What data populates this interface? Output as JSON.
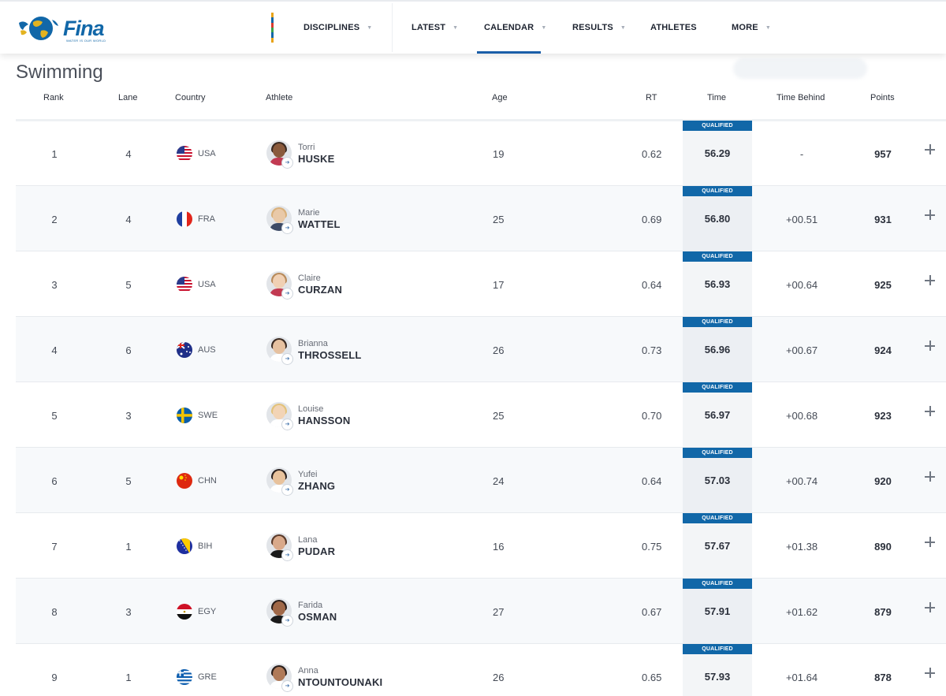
{
  "brand": {
    "name": "Fina",
    "tagline": "WATER IS OUR WORLD"
  },
  "nav": {
    "items": [
      {
        "label": "DISCIPLINES",
        "has_caret": true
      },
      {
        "label": "LATEST",
        "has_caret": true
      },
      {
        "label": "CALENDAR",
        "has_caret": true,
        "active": true
      },
      {
        "label": "RESULTS",
        "has_caret": true
      },
      {
        "label": "ATHLETES",
        "has_caret": false
      },
      {
        "label": "MORE",
        "has_caret": true
      }
    ],
    "accent": "#1a5ea8"
  },
  "page": {
    "title": "Swimming"
  },
  "table": {
    "columns": {
      "rank": "Rank",
      "lane": "Lane",
      "country": "Country",
      "athlete": "Athlete",
      "age": "Age",
      "rt": "RT",
      "time": "Time",
      "behind": "Time Behind",
      "points": "Points"
    },
    "qualified_label": "QUALIFIED",
    "rows": [
      {
        "rank": "1",
        "lane": "4",
        "country": "USA",
        "flag": "usa",
        "first": "Torri",
        "last": "HUSKE",
        "age": "19",
        "rt": "0.62",
        "time": "56.29",
        "behind": "-",
        "points": "957"
      },
      {
        "rank": "2",
        "lane": "4",
        "country": "FRA",
        "flag": "fra",
        "first": "Marie",
        "last": "WATTEL",
        "age": "25",
        "rt": "0.69",
        "time": "56.80",
        "behind": "+00.51",
        "points": "931"
      },
      {
        "rank": "3",
        "lane": "5",
        "country": "USA",
        "flag": "usa",
        "first": "Claire",
        "last": "CURZAN",
        "age": "17",
        "rt": "0.64",
        "time": "56.93",
        "behind": "+00.64",
        "points": "925"
      },
      {
        "rank": "4",
        "lane": "6",
        "country": "AUS",
        "flag": "aus",
        "first": "Brianna",
        "last": "THROSSELL",
        "age": "26",
        "rt": "0.73",
        "time": "56.96",
        "behind": "+00.67",
        "points": "924"
      },
      {
        "rank": "5",
        "lane": "3",
        "country": "SWE",
        "flag": "swe",
        "first": "Louise",
        "last": "HANSSON",
        "age": "25",
        "rt": "0.70",
        "time": "56.97",
        "behind": "+00.68",
        "points": "923"
      },
      {
        "rank": "6",
        "lane": "5",
        "country": "CHN",
        "flag": "chn",
        "first": "Yufei",
        "last": "ZHANG",
        "age": "24",
        "rt": "0.64",
        "time": "57.03",
        "behind": "+00.74",
        "points": "920"
      },
      {
        "rank": "7",
        "lane": "1",
        "country": "BIH",
        "flag": "bih",
        "first": "Lana",
        "last": "PUDAR",
        "age": "16",
        "rt": "0.75",
        "time": "57.67",
        "behind": "+01.38",
        "points": "890"
      },
      {
        "rank": "8",
        "lane": "3",
        "country": "EGY",
        "flag": "egy",
        "first": "Farida",
        "last": "OSMAN",
        "age": "27",
        "rt": "0.67",
        "time": "57.91",
        "behind": "+01.62",
        "points": "879"
      },
      {
        "rank": "9",
        "lane": "1",
        "country": "GRE",
        "flag": "gre",
        "first": "Anna",
        "last": "NTOUNTOUNAKI",
        "age": "26",
        "rt": "0.65",
        "time": "57.93",
        "behind": "+01.64",
        "points": "878"
      }
    ]
  }
}
